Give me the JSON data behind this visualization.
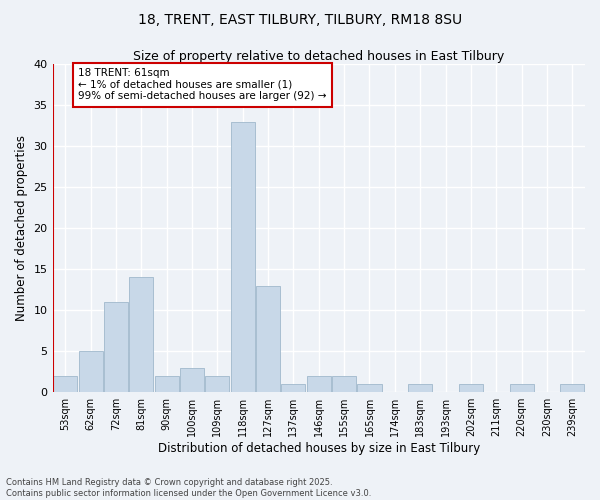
{
  "title_line1": "18, TRENT, EAST TILBURY, TILBURY, RM18 8SU",
  "title_line2": "Size of property relative to detached houses in East Tilbury",
  "xlabel": "Distribution of detached houses by size in East Tilbury",
  "ylabel": "Number of detached properties",
  "bar_color": "#c8d8e8",
  "bar_edge_color": "#a0b8cc",
  "categories": [
    "53sqm",
    "62sqm",
    "72sqm",
    "81sqm",
    "90sqm",
    "100sqm",
    "109sqm",
    "118sqm",
    "127sqm",
    "137sqm",
    "146sqm",
    "155sqm",
    "165sqm",
    "174sqm",
    "183sqm",
    "193sqm",
    "202sqm",
    "211sqm",
    "220sqm",
    "230sqm",
    "239sqm"
  ],
  "values": [
    2,
    5,
    11,
    14,
    2,
    3,
    2,
    33,
    13,
    1,
    2,
    2,
    1,
    0,
    1,
    0,
    1,
    0,
    1,
    0,
    1
  ],
  "ylim": [
    0,
    40
  ],
  "yticks": [
    0,
    5,
    10,
    15,
    20,
    25,
    30,
    35,
    40
  ],
  "annotation_text": "18 TRENT: 61sqm\n← 1% of detached houses are smaller (1)\n99% of semi-detached houses are larger (92) →",
  "annotation_box_color": "#ffffff",
  "annotation_box_edge_color": "#cc0000",
  "marker_line_color": "#cc0000",
  "bg_color": "#eef2f7",
  "grid_color": "#ffffff",
  "footer_line1": "Contains HM Land Registry data © Crown copyright and database right 2025.",
  "footer_line2": "Contains public sector information licensed under the Open Government Licence v3.0."
}
